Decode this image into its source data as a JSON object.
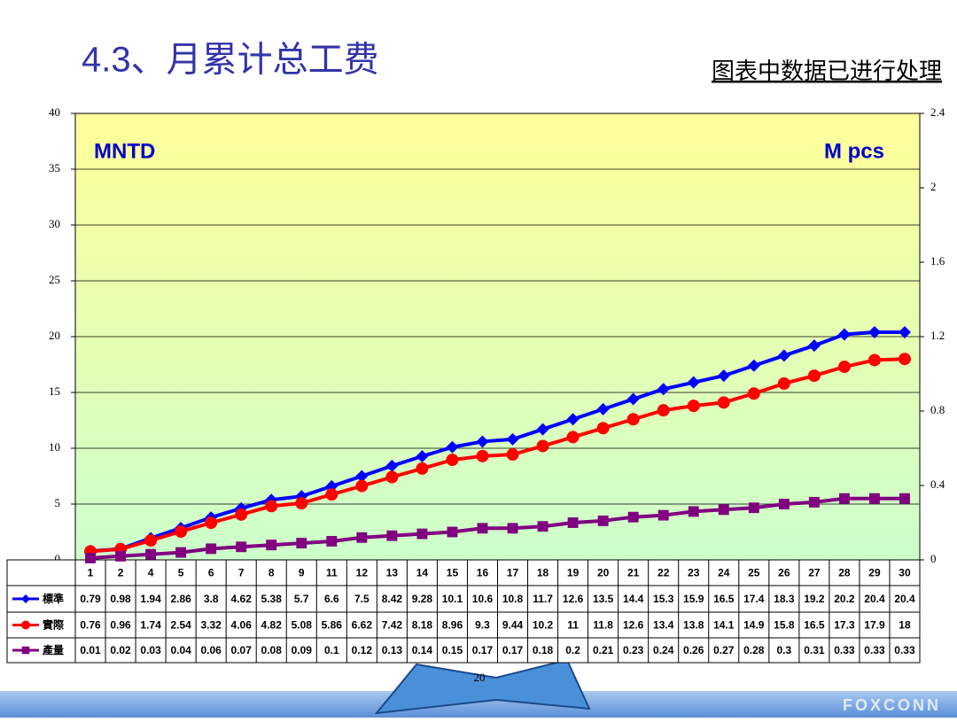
{
  "chart_data": {
    "type": "line",
    "title": "4.3、月累计总工费",
    "note": "图表中数据已进行处理",
    "y_label": "MNTD",
    "y2_label": "M pcs",
    "categories": [
      "1",
      "2",
      "4",
      "5",
      "6",
      "7",
      "8",
      "9",
      "11",
      "12",
      "13",
      "14",
      "15",
      "16",
      "17",
      "18",
      "19",
      "20",
      "21",
      "22",
      "23",
      "24",
      "25",
      "26",
      "27",
      "28",
      "29",
      "30"
    ],
    "series": [
      {
        "name": "標準",
        "color": "#0000ff",
        "marker": "diamond",
        "values": [
          0.79,
          0.98,
          1.94,
          2.86,
          3.8,
          4.62,
          5.38,
          5.7,
          6.6,
          7.5,
          8.42,
          9.28,
          10.1,
          10.6,
          10.8,
          11.7,
          12.6,
          13.5,
          14.4,
          15.3,
          15.9,
          16.5,
          17.4,
          18.3,
          19.2,
          20.2,
          20.4,
          20.4
        ]
      },
      {
        "name": "實際",
        "color": "#ff0000",
        "marker": "circle",
        "values": [
          0.76,
          0.96,
          1.74,
          2.54,
          3.32,
          4.06,
          4.82,
          5.08,
          5.86,
          6.62,
          7.42,
          8.18,
          8.96,
          9.3,
          9.44,
          10.2,
          11,
          11.8,
          12.6,
          13.4,
          13.8,
          14.1,
          14.9,
          15.8,
          16.5,
          17.3,
          17.9,
          18
        ]
      },
      {
        "name": "產量",
        "color": "#800080",
        "marker": "square",
        "axis": "y2",
        "values": [
          0.01,
          0.02,
          0.03,
          0.04,
          0.06,
          0.07,
          0.08,
          0.09,
          0.1,
          0.12,
          0.13,
          0.14,
          0.15,
          0.17,
          0.17,
          0.18,
          0.2,
          0.21,
          0.23,
          0.24,
          0.26,
          0.27,
          0.28,
          0.3,
          0.31,
          0.33,
          0.33,
          0.33
        ]
      }
    ],
    "ylim": [
      0,
      40
    ],
    "yticks": [
      0,
      5,
      10,
      15,
      20,
      25,
      30,
      35,
      40
    ],
    "y2lim": [
      0,
      2.4
    ],
    "y2ticks": [
      0,
      0.4,
      0.8,
      1.2,
      1.6,
      2,
      2.4
    ],
    "grid": true
  },
  "slide": {
    "page_number": "20",
    "logo": "FOXCONN"
  }
}
